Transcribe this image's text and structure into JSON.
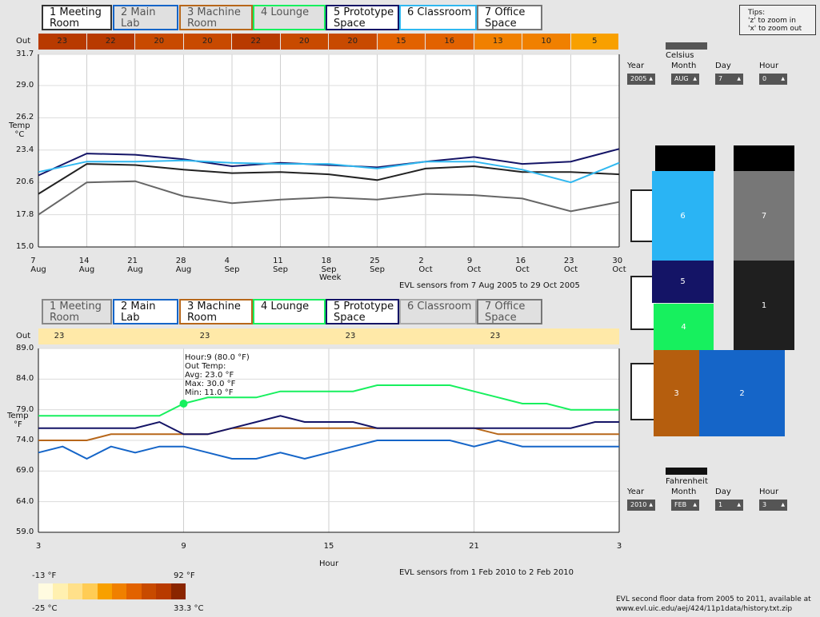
{
  "top": {
    "tabs": [
      {
        "label": "1 Meeting\nRoom",
        "border": "#333333",
        "dim": false
      },
      {
        "label": "2 Main\nLab",
        "border": "#1565c8",
        "dim": true
      },
      {
        "label": "3 Machine\nRoom",
        "border": "#b7671a",
        "dim": true
      },
      {
        "label": "4 Lounge",
        "border": "#17f05e",
        "dim": true
      },
      {
        "label": "5 Prototype\nSpace",
        "border": "#141466",
        "dim": false
      },
      {
        "label": "6 Classroom",
        "border": "#30b8f0",
        "dim": false
      },
      {
        "label": "7 Office\nSpace",
        "border": "#777777",
        "dim": false
      }
    ],
    "out_label": "Out",
    "out_values": [
      "23",
      "22",
      "20",
      "20",
      "22",
      "20",
      "20",
      "15",
      "16",
      "13",
      "10",
      "5"
    ],
    "out_colors": [
      "#b83a00",
      "#b83a00",
      "#c84a00",
      "#c84a00",
      "#b83a00",
      "#c84a00",
      "#c84a00",
      "#e26200",
      "#e26200",
      "#f08000",
      "#f08000",
      "#f8a000"
    ],
    "y_label": "Temp\n°C",
    "y_ticks": [
      "31.7",
      "29.0",
      "26.2",
      "23.4",
      "20.6",
      "17.8",
      "15.0"
    ],
    "x_ticks": [
      "7 Aug",
      "14 Aug",
      "21 Aug",
      "28 Aug",
      "4 Sep",
      "11 Sep",
      "18 Sep",
      "25 Sep",
      "2 Oct",
      "9 Oct",
      "16 Oct",
      "23 Oct",
      "30 Oct"
    ],
    "x_label": "Week",
    "caption": "EVL sensors from 7 Aug 2005 to 29 Oct 2005"
  },
  "bottom": {
    "tabs": [
      {
        "label": "1 Meeting\nRoom",
        "border": "#888888",
        "dim": true
      },
      {
        "label": "2 Main\nLab",
        "border": "#1565c8",
        "dim": false
      },
      {
        "label": "3 Machine\nRoom",
        "border": "#b7671a",
        "dim": false
      },
      {
        "label": "4 Lounge",
        "border": "#17f05e",
        "dim": false
      },
      {
        "label": "5 Prototype\nSpace",
        "border": "#141466",
        "dim": false
      },
      {
        "label": "6 Classroom",
        "border": "#aaaaaa",
        "dim": true
      },
      {
        "label": "7 Office\nSpace",
        "border": "#777777",
        "dim": true
      }
    ],
    "out_label": "Out",
    "out_values": [
      "23",
      "23",
      "23",
      "23"
    ],
    "y_label": "Temp\n°F",
    "y_ticks": [
      "89.0",
      "84.0",
      "79.0",
      "74.0",
      "69.0",
      "64.0",
      "59.0"
    ],
    "x_ticks": [
      "3",
      "9",
      "15",
      "21",
      "3"
    ],
    "x_label": "Hour",
    "caption": "EVL sensors from 1 Feb 2010 to 2 Feb 2010",
    "tooltip": {
      "hour": "Hour:9 (80.0 °F)",
      "out": "Out Temp:",
      "avg": "Avg: 23.0 °F",
      "max": "Max: 30.0 °F",
      "min": "Min: 11.0 °F"
    }
  },
  "chart_data": [
    {
      "type": "line",
      "title": "",
      "xlabel": "Week",
      "ylabel": "Temp °C",
      "ylim": [
        15.0,
        31.7
      ],
      "x": [
        "7 Aug",
        "14 Aug",
        "21 Aug",
        "28 Aug",
        "4 Sep",
        "11 Sep",
        "18 Sep",
        "25 Sep",
        "2 Oct",
        "9 Oct",
        "16 Oct",
        "23 Oct",
        "30 Oct"
      ],
      "series": [
        {
          "name": "1 Meeting Room",
          "color": "#222222",
          "values": [
            19.6,
            22.2,
            22.1,
            21.7,
            21.4,
            21.5,
            21.3,
            20.8,
            21.8,
            22.0,
            21.5,
            21.5,
            21.3
          ]
        },
        {
          "name": "5 Prototype Space",
          "color": "#141466",
          "values": [
            21.2,
            23.1,
            23.0,
            22.6,
            22.0,
            22.3,
            22.1,
            21.9,
            22.4,
            22.8,
            22.2,
            22.4,
            23.5
          ]
        },
        {
          "name": "6 Classroom",
          "color": "#30b8f0",
          "values": [
            21.5,
            22.4,
            22.4,
            22.5,
            22.3,
            22.2,
            22.2,
            21.8,
            22.4,
            22.4,
            21.7,
            20.6,
            22.3
          ]
        },
        {
          "name": "7 Office Space",
          "color": "#666666",
          "values": [
            17.8,
            20.6,
            20.7,
            19.4,
            18.8,
            19.1,
            19.3,
            19.1,
            19.6,
            19.5,
            19.2,
            18.1,
            18.9
          ]
        }
      ]
    },
    {
      "type": "line",
      "title": "",
      "xlabel": "Hour",
      "ylabel": "Temp °F",
      "ylim": [
        59.0,
        89.0
      ],
      "x": [
        3,
        4,
        5,
        6,
        7,
        8,
        9,
        10,
        11,
        12,
        13,
        14,
        15,
        16,
        17,
        18,
        19,
        20,
        21,
        22,
        23,
        24,
        25,
        26,
        27
      ],
      "series": [
        {
          "name": "2 Main Lab",
          "color": "#1565c8",
          "values": [
            72,
            73,
            71,
            73,
            72,
            73,
            73,
            72,
            71,
            71,
            72,
            71,
            72,
            73,
            74,
            74,
            74,
            74,
            73,
            74,
            73,
            73,
            73,
            73,
            73
          ]
        },
        {
          "name": "3 Machine Room",
          "color": "#b7671a",
          "values": [
            74,
            74,
            74,
            75,
            75,
            75,
            75,
            75,
            76,
            76,
            76,
            76,
            76,
            76,
            76,
            76,
            76,
            76,
            76,
            75,
            75,
            75,
            75,
            75,
            75
          ]
        },
        {
          "name": "4 Lounge",
          "color": "#17f05e",
          "values": [
            78,
            78,
            78,
            78,
            78,
            78,
            80,
            81,
            81,
            81,
            82,
            82,
            82,
            82,
            83,
            83,
            83,
            83,
            82,
            81,
            80,
            80,
            79,
            79,
            79
          ]
        },
        {
          "name": "5 Prototype Space",
          "color": "#141466",
          "values": [
            76,
            76,
            76,
            76,
            76,
            77,
            75,
            75,
            76,
            77,
            78,
            77,
            77,
            77,
            76,
            76,
            76,
            76,
            76,
            76,
            76,
            76,
            76,
            77,
            77
          ]
        }
      ]
    }
  ],
  "tips": {
    "title": "Tips:",
    "line1": "'z' to zoom in",
    "line2": "'x' to zoom out"
  },
  "top_controls": {
    "unit": "Celsius",
    "labels": {
      "year": "Year",
      "month": "Month",
      "day": "Day",
      "hour": "Hour"
    },
    "values": {
      "year": "2005",
      "month": "AUG",
      "day": "7",
      "hour": "0"
    }
  },
  "bottom_controls": {
    "unit": "Fahrenheit",
    "labels": {
      "year": "Year",
      "month": "Month",
      "day": "Day",
      "hour": "Hour"
    },
    "values": {
      "year": "2010",
      "month": "FEB",
      "day": "1",
      "hour": "3"
    }
  },
  "floor": {
    "rooms": [
      {
        "label": "6",
        "color": "#2ab4f4"
      },
      {
        "label": "7",
        "color": "#777777"
      },
      {
        "label": "5",
        "color": "#141466"
      },
      {
        "label": "1",
        "color": "#1f1f1f"
      },
      {
        "label": "4",
        "color": "#17f05e"
      },
      {
        "label": "3",
        "color": "#b55e0e"
      },
      {
        "label": "2",
        "color": "#1565c8"
      }
    ]
  },
  "legend": {
    "f_min": "-13 °F",
    "f_max": "92 °F",
    "c_min": "-25 °C",
    "c_max": "33.3 °C",
    "swatches": [
      "#fffbe0",
      "#fff0b0",
      "#ffe08a",
      "#ffcc55",
      "#f8a000",
      "#f08000",
      "#e26200",
      "#c84a00",
      "#b83a00",
      "#8a2500"
    ]
  },
  "footer": {
    "line1": "EVL second floor data from 2005 to 2011, available at",
    "line2": "www.evl.uic.edu/aej/424/11p1data/history.txt.zip"
  }
}
